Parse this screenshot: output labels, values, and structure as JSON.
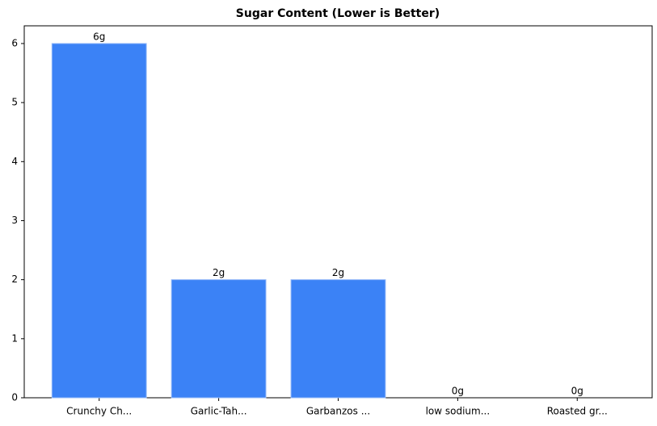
{
  "chart_data": {
    "type": "bar",
    "title": "Sugar Content (Lower is Better)",
    "categories": [
      "Crunchy Ch...",
      "Garlic-Tah...",
      "Garbanzos ...",
      "low sodium...",
      "Roasted gr..."
    ],
    "values": [
      6,
      2,
      2,
      0,
      0
    ],
    "value_labels": [
      "6g",
      "2g",
      "2g",
      "0g",
      "0g"
    ],
    "color": "#3b82f6",
    "ylim": [
      0,
      6.3
    ],
    "yticks": [
      0,
      1,
      2,
      3,
      4,
      5,
      6
    ],
    "grid": false
  }
}
